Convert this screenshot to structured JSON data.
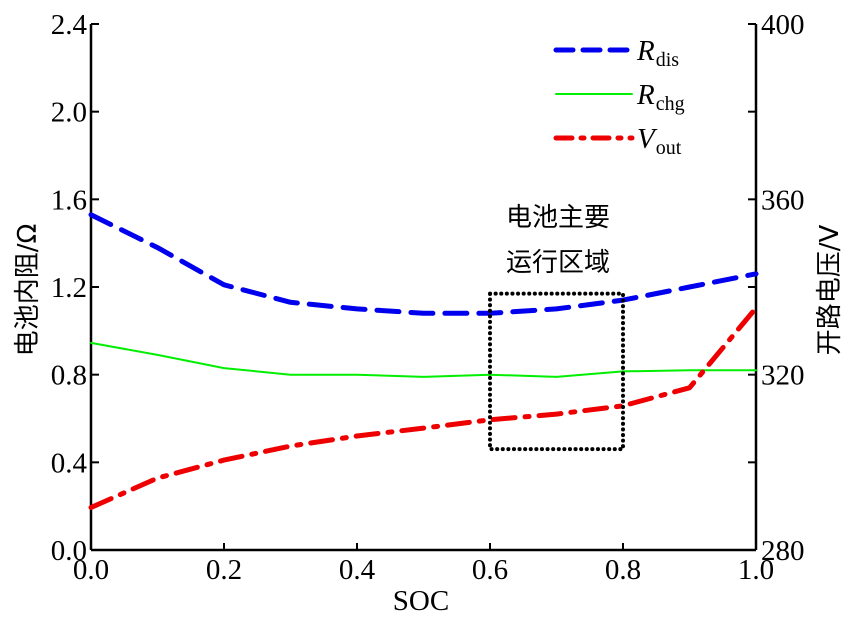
{
  "chart_data": {
    "type": "line",
    "title": "",
    "xlabel": "SOC",
    "ylabel_left": "电池内阻/Ω",
    "ylabel_right": "开路电压/V",
    "xlim": [
      0.0,
      1.0
    ],
    "ylim_left": [
      0.0,
      2.4
    ],
    "ylim_right": [
      280,
      400
    ],
    "x_ticks": [
      "0.0",
      "0.2",
      "0.4",
      "0.6",
      "0.8",
      "1.0"
    ],
    "y_left_ticks": [
      "0.0",
      "0.4",
      "0.8",
      "1.2",
      "1.6",
      "2.0",
      "2.4"
    ],
    "y_right_ticks": [
      "280",
      "320",
      "360",
      "400"
    ],
    "grid": false,
    "legend_position": "top-right",
    "x": [
      0.0,
      0.1,
      0.2,
      0.3,
      0.4,
      0.5,
      0.6,
      0.7,
      0.8,
      0.9,
      1.0
    ],
    "series": [
      {
        "name": "R",
        "subscript": "dis",
        "axis": "left",
        "color": "#0000ee",
        "style": "dashed",
        "values": [
          1.53,
          1.38,
          1.21,
          1.13,
          1.1,
          1.08,
          1.08,
          1.1,
          1.14,
          1.2,
          1.26
        ]
      },
      {
        "name": "R",
        "subscript": "chg",
        "axis": "left",
        "color": "#00ee00",
        "style": "solid",
        "values": [
          0.945,
          0.89,
          0.83,
          0.8,
          0.8,
          0.79,
          0.8,
          0.79,
          0.815,
          0.82,
          0.82
        ]
      },
      {
        "name": "V",
        "subscript": "out",
        "axis": "right",
        "color": "#ee0000",
        "style": "dashdot",
        "values": [
          289.7,
          296.4,
          300.5,
          303.7,
          306.0,
          307.8,
          309.7,
          311.0,
          312.9,
          317.0,
          335.2
        ]
      }
    ],
    "annotation": {
      "lines": [
        "电池主要",
        "运行区域"
      ],
      "box_x_range": [
        0.6,
        0.8
      ],
      "box_y_range_left": [
        0.46,
        1.17
      ]
    }
  }
}
